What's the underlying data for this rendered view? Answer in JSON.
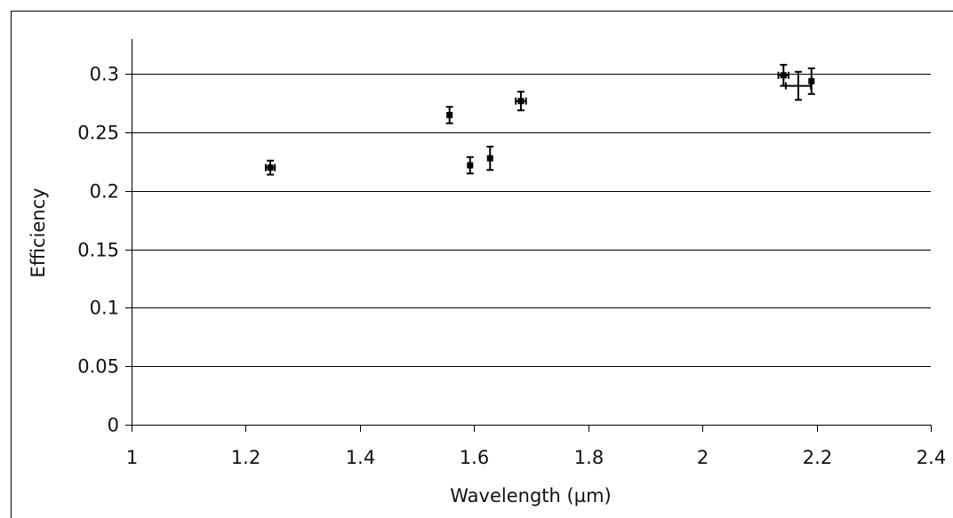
{
  "chart_data": {
    "type": "scatter",
    "title": "",
    "xlabel": "Wavelength (µm)",
    "ylabel": "Efficiency",
    "xlim": [
      1,
      2.4
    ],
    "ylim": [
      0,
      0.3
    ],
    "x_ticks": [
      "1",
      "1.2",
      "1.4",
      "1.6",
      "1.8",
      "2",
      "2.2",
      "2.4"
    ],
    "x_tick_values": [
      1,
      1.2,
      1.4,
      1.6,
      1.8,
      2,
      2.2,
      2.4
    ],
    "y_ticks": [
      "0",
      "0.05",
      "0.1",
      "0.15",
      "0.2",
      "0.25",
      "0.3"
    ],
    "y_tick_values": [
      0,
      0.05,
      0.1,
      0.15,
      0.2,
      0.25,
      0.3
    ],
    "grid": "horizontal",
    "legend": "none",
    "marker_color": "#000000",
    "points": [
      {
        "x": 1.243,
        "y": 0.22,
        "yerr": 0.006,
        "xerr": 0.008,
        "open": false
      },
      {
        "x": 1.557,
        "y": 0.265,
        "yerr": 0.007,
        "xerr": 0,
        "open": false
      },
      {
        "x": 1.593,
        "y": 0.222,
        "yerr": 0.007,
        "xerr": 0,
        "open": false
      },
      {
        "x": 1.628,
        "y": 0.228,
        "yerr": 0.01,
        "xerr": 0,
        "open": false
      },
      {
        "x": 1.682,
        "y": 0.277,
        "yerr": 0.008,
        "xerr": 0.009,
        "open": false
      },
      {
        "x": 2.142,
        "y": 0.299,
        "yerr": 0.009,
        "xerr": 0.009,
        "open": false
      },
      {
        "x": 2.168,
        "y": 0.29,
        "yerr": 0.012,
        "xerr": 0.022,
        "open": true
      },
      {
        "x": 2.191,
        "y": 0.294,
        "yerr": 0.011,
        "xerr": 0,
        "open": false
      }
    ]
  }
}
